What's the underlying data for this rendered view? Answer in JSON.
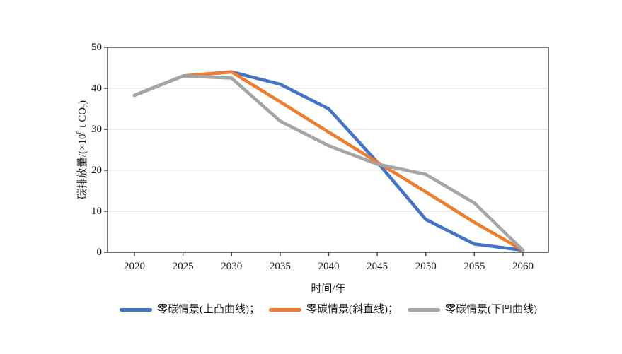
{
  "chart_data": {
    "type": "line",
    "x": [
      2020,
      2025,
      2030,
      2035,
      2040,
      2045,
      2050,
      2055,
      2060
    ],
    "series": [
      {
        "id": "convex",
        "name": "零碳情景(上凸曲线)",
        "legend_label": "零碳情景(上凸曲线)；",
        "color": "#4472C4",
        "values": [
          38.3,
          43,
          44,
          41,
          35,
          22,
          8,
          2,
          0.5
        ]
      },
      {
        "id": "linear",
        "name": "零碳情景(斜直线)",
        "legend_label": "零碳情景(斜直线)；",
        "color": "#ED7D31",
        "values": [
          38.3,
          43,
          44,
          36.7,
          29.3,
          22,
          14.7,
          7.3,
          0.5
        ]
      },
      {
        "id": "concave",
        "name": "零碳情景(下凹曲线)",
        "legend_label": "零碳情景(下凹曲线)",
        "color": "#A5A5A5",
        "values": [
          38.3,
          43,
          42.5,
          32,
          26,
          21.5,
          19,
          12,
          0.5
        ]
      }
    ],
    "xlabel": "时间/年",
    "ylabel": "碳排放量/(×10⁸ t CO₂)",
    "ylabel_parts": {
      "prefix": "碳排放量/(×10",
      "sup": "8",
      "mid": " t CO",
      "sub": "2",
      "suffix": ")"
    },
    "xlim": [
      2020,
      2060
    ],
    "ylim": [
      0,
      50
    ],
    "yticks": [
      0,
      10,
      20,
      30,
      40,
      50
    ],
    "grid": "horizontal",
    "legend_position": "bottom",
    "colors": {
      "grid_line": "#D9D9D9",
      "axis_border": "#3b3b3b",
      "text": "#1a1a1a"
    }
  }
}
